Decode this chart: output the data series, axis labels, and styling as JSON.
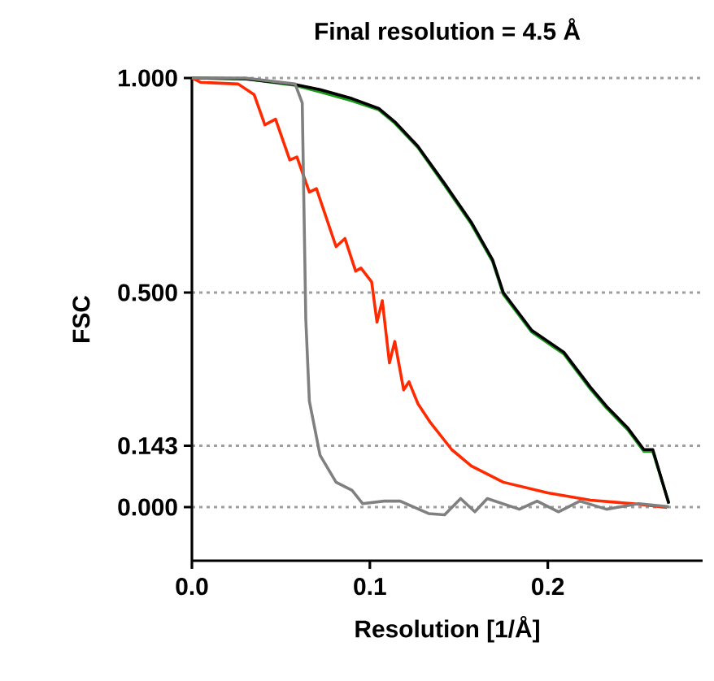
{
  "chart_data": {
    "type": "line",
    "title": "Final resolution = 4.5 Å",
    "xlabel": "Resolution [1/Å]",
    "ylabel": "FSC",
    "xlim": [
      0,
      0.287
    ],
    "ylim": [
      -0.125,
      1.0
    ],
    "xticks": [
      {
        "value": 0,
        "label": "0.0"
      },
      0.1,
      0.2
    ],
    "yticks": [
      {
        "value": 0,
        "label": "0.000"
      },
      0.143,
      {
        "value": 0.5,
        "label": "0.500"
      },
      {
        "value": 1.0,
        "label": "1.000"
      }
    ],
    "grid": "y",
    "line_style": "solid",
    "marker": "none",
    "series": [
      {
        "color": "#1a9a1a",
        "x": [
          0,
          0.03,
          0.058,
          0.072,
          0.09,
          0.105,
          0.114,
          0.127,
          0.142,
          0.157,
          0.169,
          0.175,
          0.191,
          0.209,
          0.224,
          0.233,
          0.245,
          0.254,
          0.259,
          0.268
        ],
        "values": [
          1.0,
          0.998,
          0.983,
          0.968,
          0.947,
          0.926,
          0.895,
          0.838,
          0.75,
          0.66,
          0.572,
          0.496,
          0.408,
          0.357,
          0.275,
          0.231,
          0.18,
          0.13,
          0.13,
          0.01
        ]
      },
      {
        "color": "#000000",
        "x": [
          0,
          0.03,
          0.058,
          0.072,
          0.09,
          0.105,
          0.114,
          0.127,
          0.142,
          0.157,
          0.169,
          0.175,
          0.191,
          0.209,
          0.224,
          0.233,
          0.245,
          0.254,
          0.259,
          0.268
        ],
        "values": [
          1.0,
          0.998,
          0.985,
          0.973,
          0.952,
          0.929,
          0.898,
          0.841,
          0.754,
          0.664,
          0.576,
          0.5,
          0.412,
          0.361,
          0.279,
          0.235,
          0.184,
          0.134,
          0.134,
          0.008
        ]
      },
      {
        "color": "#ff2a00",
        "x": [
          0,
          0.005,
          0.026,
          0.035,
          0.041,
          0.047,
          0.055,
          0.059,
          0.066,
          0.07,
          0.081,
          0.086,
          0.092,
          0.095,
          0.101,
          0.104,
          0.107,
          0.111,
          0.114,
          0.119,
          0.122,
          0.127,
          0.134,
          0.146,
          0.157,
          0.175,
          0.2,
          0.224,
          0.248,
          0.267
        ],
        "values": [
          1.0,
          0.99,
          0.986,
          0.961,
          0.891,
          0.904,
          0.809,
          0.816,
          0.734,
          0.742,
          0.607,
          0.626,
          0.55,
          0.557,
          0.525,
          0.431,
          0.481,
          0.336,
          0.386,
          0.273,
          0.292,
          0.241,
          0.197,
          0.134,
          0.096,
          0.058,
          0.033,
          0.016,
          0.008,
          -0.001
        ]
      },
      {
        "color": "#808080",
        "x": [
          0,
          0.03,
          0.058,
          0.062,
          0.063,
          0.064,
          0.066,
          0.072,
          0.081,
          0.09,
          0.096,
          0.108,
          0.117,
          0.133,
          0.142,
          0.151,
          0.159,
          0.166,
          0.184,
          0.194,
          0.206,
          0.218,
          0.233,
          0.251,
          0.268
        ],
        "values": [
          1.0,
          1.0,
          0.986,
          0.942,
          0.689,
          0.437,
          0.247,
          0.121,
          0.058,
          0.039,
          0.008,
          0.014,
          0.014,
          -0.015,
          -0.018,
          0.02,
          -0.011,
          0.02,
          -0.005,
          0.014,
          -0.011,
          0.014,
          -0.005,
          0.008,
          0.001
        ]
      }
    ]
  }
}
